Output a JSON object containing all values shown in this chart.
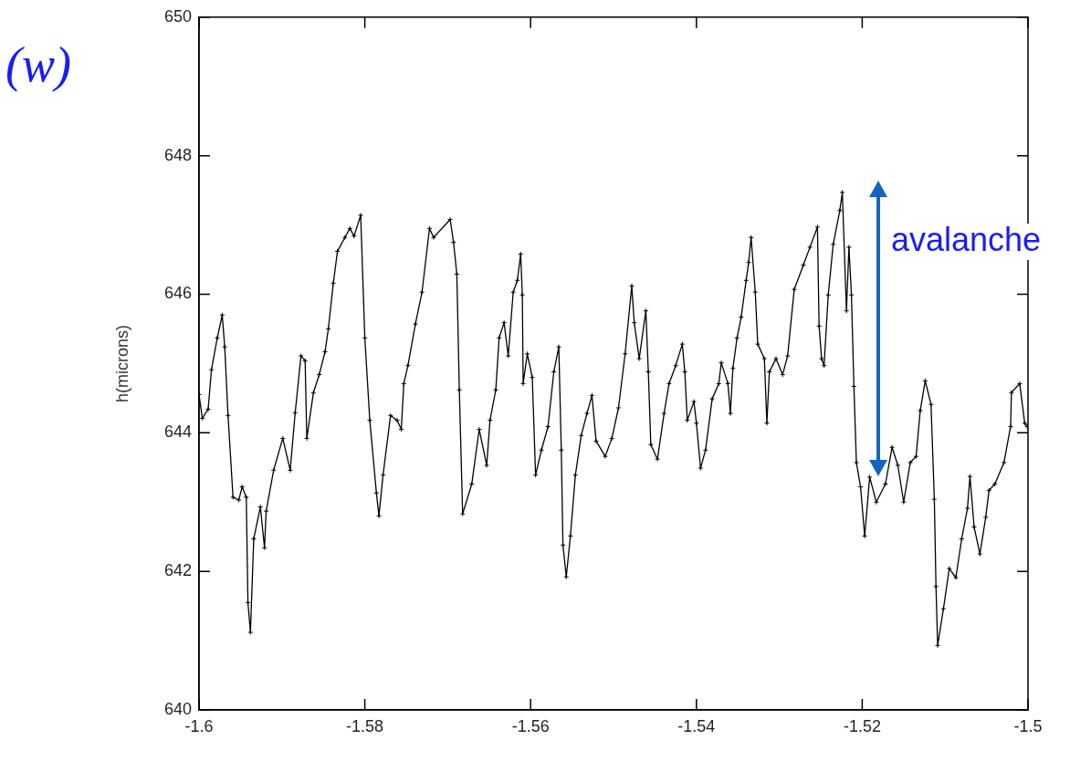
{
  "chart_data": {
    "type": "line",
    "title": "(w)",
    "ylabel": "h(microns)",
    "xlim": [
      -1.6,
      -1.5
    ],
    "xticks": [
      -1.6,
      -1.58,
      -1.56,
      -1.54,
      -1.52,
      -1.5
    ],
    "ylim": [
      640,
      650
    ],
    "yticks": [
      640,
      642,
      644,
      646,
      648,
      650
    ],
    "marker": "cross",
    "line_style": "solid",
    "annotations": [
      "avalanche"
    ],
    "series": [
      {
        "color": "#000000",
        "x": [
          -1.6,
          -1.5996,
          -1.5989,
          -1.5985,
          -1.5978,
          -1.5972,
          -1.5969,
          -1.5965,
          -1.5959,
          -1.5952,
          -1.5948,
          -1.5943,
          -1.5941,
          -1.5938,
          -1.5934,
          -1.5926,
          -1.5921,
          -1.5919,
          -1.591,
          -1.5899,
          -1.589,
          -1.5884,
          -1.5877,
          -1.5872,
          -1.587,
          -1.5862,
          -1.5855,
          -1.5848,
          -1.5844,
          -1.5838,
          -1.5833,
          -1.5824,
          -1.5818,
          -1.5813,
          -1.5805,
          -1.58,
          -1.5794,
          -1.5786,
          -1.5783,
          -1.5778,
          -1.5769,
          -1.5761,
          -1.5756,
          -1.5753,
          -1.5748,
          -1.5739,
          -1.5731,
          -1.5722,
          -1.5717,
          -1.5697,
          -1.5693,
          -1.5689,
          -1.5686,
          -1.5682,
          -1.5671,
          -1.5662,
          -1.5653,
          -1.5649,
          -1.5642,
          -1.5638,
          -1.5632,
          -1.5627,
          -1.5621,
          -1.5616,
          -1.5612,
          -1.561,
          -1.5609,
          -1.5604,
          -1.5598,
          -1.5594,
          -1.5587,
          -1.5579,
          -1.5572,
          -1.5566,
          -1.5563,
          -1.5561,
          -1.5557,
          -1.5552,
          -1.5546,
          -1.5539,
          -1.5532,
          -1.5526,
          -1.5521,
          -1.551,
          -1.5502,
          -1.5494,
          -1.5486,
          -1.5478,
          -1.5475,
          -1.5469,
          -1.5461,
          -1.5458,
          -1.5455,
          -1.5447,
          -1.5439,
          -1.5433,
          -1.5425,
          -1.5417,
          -1.5414,
          -1.5411,
          -1.5403,
          -1.54,
          -1.5395,
          -1.5389,
          -1.5381,
          -1.5373,
          -1.537,
          -1.5362,
          -1.5359,
          -1.5356,
          -1.5351,
          -1.5346,
          -1.534,
          -1.5337,
          -1.5334,
          -1.5329,
          -1.5326,
          -1.5318,
          -1.5315,
          -1.5312,
          -1.5304,
          -1.5296,
          -1.529,
          -1.5282,
          -1.5271,
          -1.5263,
          -1.5254,
          -1.5252,
          -1.5249,
          -1.5246,
          -1.5241,
          -1.5235,
          -1.5227,
          -1.5224,
          -1.5219,
          -1.5216,
          -1.5213,
          -1.521,
          -1.5207,
          -1.5202,
          -1.5197,
          -1.5191,
          -1.5183,
          -1.5172,
          -1.5164,
          -1.5157,
          -1.515,
          -1.5142,
          -1.5135,
          -1.513,
          -1.5124,
          -1.5117,
          -1.5113,
          -1.5111,
          -1.5109,
          -1.5102,
          -1.5095,
          -1.5087,
          -1.508,
          -1.5073,
          -1.507,
          -1.5065,
          -1.5058,
          -1.5051,
          -1.5047,
          -1.504,
          -1.5029,
          -1.5021,
          -1.502,
          -1.501,
          -1.5004,
          -1.5001
        ],
        "values": [
          644.55,
          644.21,
          644.34,
          644.91,
          645.37,
          645.7,
          645.24,
          644.25,
          643.07,
          643.03,
          643.22,
          643.07,
          641.55,
          641.12,
          642.47,
          642.93,
          642.34,
          642.87,
          643.46,
          643.92,
          643.46,
          644.29,
          645.11,
          645.04,
          643.92,
          644.58,
          644.84,
          645.17,
          645.5,
          646.16,
          646.62,
          646.82,
          646.95,
          646.84,
          647.14,
          645.37,
          644.18,
          643.13,
          642.8,
          643.39,
          644.25,
          644.18,
          644.05,
          644.71,
          644.97,
          645.57,
          646.03,
          646.95,
          646.82,
          647.08,
          646.75,
          646.29,
          644.62,
          642.83,
          643.26,
          644.05,
          643.53,
          644.18,
          644.62,
          645.37,
          645.59,
          645.11,
          646.03,
          646.2,
          646.58,
          645.99,
          644.71,
          645.14,
          644.8,
          643.39,
          643.75,
          644.09,
          644.88,
          645.24,
          643.75,
          642.38,
          641.92,
          642.51,
          643.39,
          643.96,
          644.28,
          644.54,
          643.88,
          643.66,
          643.92,
          644.36,
          645.14,
          646.12,
          645.59,
          645.07,
          645.76,
          644.88,
          643.83,
          643.62,
          644.28,
          644.71,
          644.97,
          645.28,
          644.88,
          644.18,
          644.45,
          644.14,
          643.49,
          643.75,
          644.49,
          644.71,
          645.01,
          644.71,
          644.28,
          644.93,
          645.37,
          645.67,
          646.2,
          646.46,
          646.82,
          646.03,
          645.28,
          645.07,
          644.14,
          644.88,
          645.07,
          644.84,
          645.11,
          646.07,
          646.42,
          646.68,
          646.97,
          645.54,
          645.07,
          644.97,
          645.99,
          646.72,
          647.21,
          647.47,
          645.76,
          646.68,
          645.99,
          644.67,
          643.57,
          643.22,
          642.51,
          643.36,
          643,
          643.26,
          643.79,
          643.53,
          643,
          643.57,
          643.66,
          644.32,
          644.75,
          644.41,
          643.04,
          641.78,
          640.93,
          641.46,
          642.04,
          641.91,
          642.47,
          642.91,
          643.37,
          642.64,
          642.25,
          642.78,
          643.17,
          643.26,
          643.57,
          644.09,
          644.58,
          644.71,
          644.14,
          644.09
        ]
      }
    ]
  }
}
